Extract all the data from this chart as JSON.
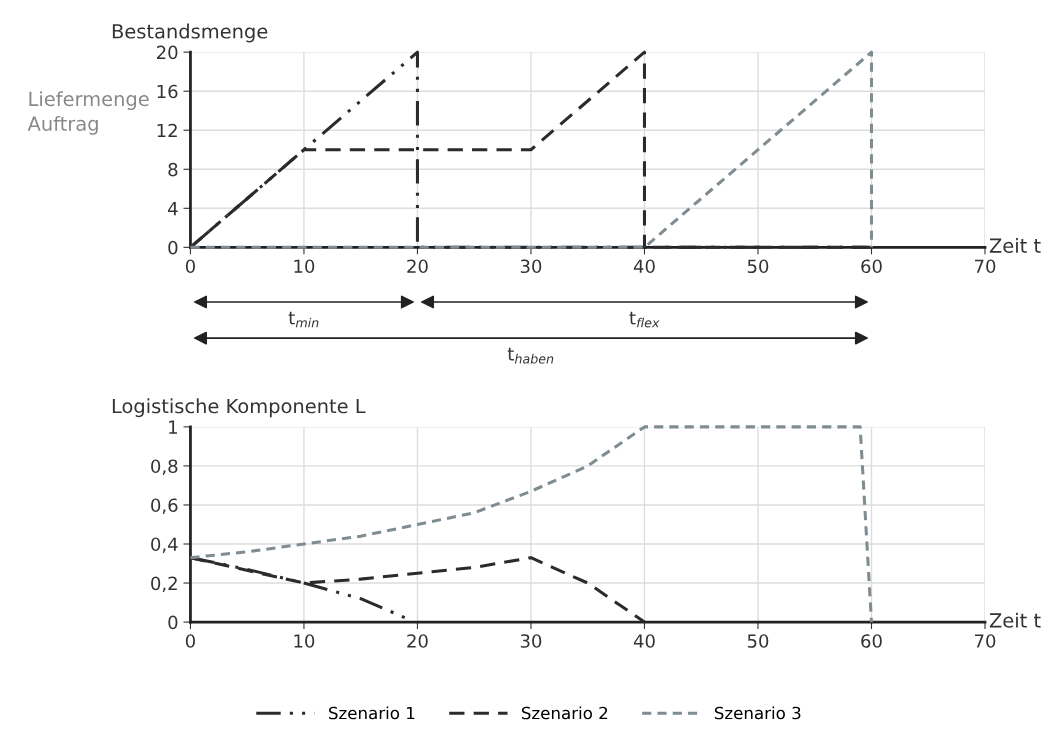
{
  "chart_data": [
    {
      "type": "line",
      "ylabel": "Bestandsmenge",
      "xlabel": "Zeit t",
      "xlim": [
        0,
        70
      ],
      "xticks": [
        0,
        10,
        20,
        30,
        40,
        50,
        60,
        70
      ],
      "ylim": [
        0,
        20
      ],
      "yticks": [
        0,
        4,
        8,
        12,
        16,
        20
      ],
      "grid": true,
      "marker": "none",
      "legend": "bottom",
      "annotations": [
        "Liefermenge\nAuftrag",
        "t$_{min}$",
        "t$_{flex}$",
        "t$_{haben}$"
      ],
      "series": [
        {
          "name": "Szenario 1",
          "color": "#2b2b2b",
          "line_style": "dashdot",
          "x": [
            0,
            10,
            20,
            20,
            60
          ],
          "values": [
            0,
            10,
            20,
            0,
            0
          ]
        },
        {
          "name": "Szenario 2",
          "color": "#2b2b2b",
          "line_style": "dashed",
          "x": [
            0,
            10,
            30,
            40,
            40,
            60
          ],
          "values": [
            0,
            10,
            10,
            20,
            0,
            0
          ]
        },
        {
          "name": "Szenario 3",
          "color": "#7f8c92",
          "line_style": "dotted",
          "x": [
            0,
            40,
            60,
            60
          ],
          "values": [
            0,
            0,
            20,
            0
          ]
        }
      ]
    },
    {
      "type": "line",
      "ylabel": "Logistische Komponente L",
      "xlabel": "Zeit t",
      "xlim": [
        0,
        70
      ],
      "xticks": [
        0,
        10,
        20,
        30,
        40,
        50,
        60,
        70
      ],
      "ylim": [
        0,
        1
      ],
      "yticks": [
        0,
        {
          "value": 0.2,
          "label": "0,2"
        },
        {
          "value": 0.4,
          "label": "0,4"
        },
        {
          "value": 0.6,
          "label": "0,6"
        },
        {
          "value": 0.8,
          "label": "0,8"
        },
        1
      ],
      "grid": true,
      "marker": "none",
      "series": [
        {
          "color": "#2b2b2b",
          "line_style": "dashdot",
          "x": [
            0,
            5,
            10,
            15,
            19
          ],
          "values": [
            0.33,
            0.27,
            0.2,
            0.12,
            0.02
          ]
        },
        {
          "color": "#2b2b2b",
          "line_style": "dashed",
          "x": [
            0,
            10,
            15,
            20,
            25,
            30,
            35,
            40
          ],
          "values": [
            0.33,
            0.2,
            0.22,
            0.25,
            0.28,
            0.33,
            0.2,
            0
          ]
        },
        {
          "color": "#7f8c92",
          "line_style": "dotted",
          "x": [
            0,
            5,
            10,
            15,
            20,
            25,
            30,
            35,
            40,
            59,
            60
          ],
          "values": [
            0.33,
            0.36,
            0.4,
            0.44,
            0.5,
            0.56,
            0.67,
            0.8,
            1,
            1,
            0
          ]
        }
      ]
    }
  ]
}
